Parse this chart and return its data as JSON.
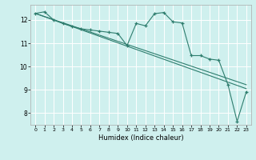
{
  "xlabel": "Humidex (Indice chaleur)",
  "background_color": "#cff0ee",
  "grid_color": "#ffffff",
  "line_color": "#2e7d6e",
  "xlim": [
    -0.5,
    23.5
  ],
  "ylim": [
    7.5,
    12.65
  ],
  "yticks": [
    8,
    9,
    10,
    11,
    12
  ],
  "xticks": [
    0,
    1,
    2,
    3,
    4,
    5,
    6,
    7,
    8,
    9,
    10,
    11,
    12,
    13,
    14,
    15,
    16,
    17,
    18,
    19,
    20,
    21,
    22,
    23
  ],
  "series": {
    "line1": {
      "x": [
        0,
        1,
        2,
        3,
        4,
        5,
        6,
        7,
        8,
        9,
        10,
        11,
        12,
        13,
        14,
        15,
        16,
        17,
        18,
        19,
        20,
        21,
        22,
        23
      ],
      "y": [
        12.28,
        12.35,
        12.0,
        11.85,
        11.72,
        11.62,
        11.57,
        11.52,
        11.47,
        11.42,
        10.9,
        11.85,
        11.75,
        12.27,
        12.32,
        11.92,
        11.87,
        10.47,
        10.47,
        10.32,
        10.27,
        9.22,
        7.65,
        8.92
      ]
    },
    "line2": {
      "x": [
        0,
        23
      ],
      "y": [
        12.28,
        9.05
      ]
    },
    "line3": {
      "x": [
        0,
        23
      ],
      "y": [
        12.28,
        9.22
      ]
    }
  }
}
